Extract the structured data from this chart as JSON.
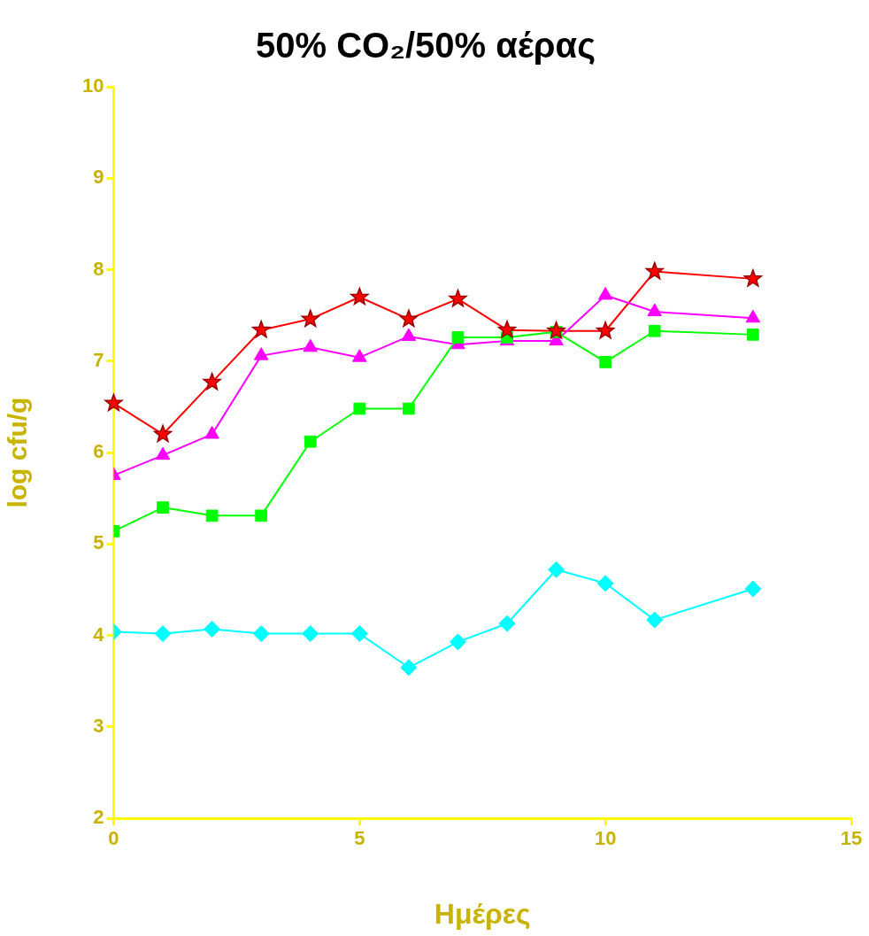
{
  "chart_data": {
    "type": "line",
    "title": "50% CO₂/50% αέρας",
    "xlabel": "Ημέρες",
    "ylabel": "log cfu/g",
    "xlim": [
      0,
      15
    ],
    "xticks": [
      0,
      5,
      10,
      15
    ],
    "ylim": [
      2,
      10
    ],
    "yticks": [
      2,
      3,
      4,
      5,
      6,
      7,
      8,
      9,
      10
    ],
    "grid": false,
    "legend": false,
    "line_style": "solid",
    "x": [
      0,
      1,
      2,
      3,
      4,
      5,
      6,
      7,
      8,
      9,
      10,
      11,
      13
    ],
    "series": [
      {
        "color": "#ff0000",
        "marker": "star",
        "values": [
          6.54,
          6.2,
          6.77,
          7.34,
          7.46,
          7.7,
          7.46,
          7.68,
          7.34,
          7.33,
          7.33,
          7.98,
          7.9
        ]
      },
      {
        "color": "#ff00ff",
        "marker": "triangle",
        "values": [
          5.75,
          5.97,
          6.2,
          7.06,
          7.15,
          7.04,
          7.27,
          7.18,
          7.22,
          7.22,
          7.72,
          7.54,
          7.47
        ]
      },
      {
        "color": "#00ff00",
        "marker": "square",
        "values": [
          5.14,
          5.4,
          5.31,
          5.31,
          6.12,
          6.48,
          6.48,
          7.26,
          7.26,
          7.32,
          6.99,
          7.33,
          7.29
        ]
      },
      {
        "color": "#00ffff",
        "marker": "diamond",
        "values": [
          4.04,
          4.02,
          4.07,
          4.02,
          4.02,
          4.02,
          3.65,
          3.93,
          4.13,
          4.72,
          4.57,
          4.17,
          4.51
        ]
      }
    ]
  }
}
